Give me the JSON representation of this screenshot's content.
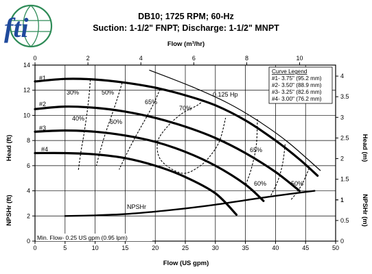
{
  "header": {
    "title": "DB10; 1725 RPM; 60-Hz",
    "subtitle": "Suction: 1-1/2\" FNPT; Discharge: 1-1/2\" MNPT",
    "brand_text": "fti",
    "brand_color": "#1f4a9c",
    "globe_color": "#2e8b57"
  },
  "chart_data": {
    "type": "line",
    "xlabel": "Flow (US gpm)",
    "x2label": "Flow (m³/hr)",
    "ylabel_head": "Head (ft)",
    "ylabel_npshr": "NPSHr (ft)",
    "y2label_head": "Head (m)",
    "y2label_npshr": "NPSHr (m)",
    "xlim": [
      0,
      50
    ],
    "ylim": [
      0,
      14
    ],
    "x2lim": [
      0,
      11.36
    ],
    "x_ticks": [
      0,
      5,
      10,
      15,
      20,
      25,
      30,
      35,
      40,
      45,
      50
    ],
    "y_ticks": [
      0,
      2,
      4,
      6,
      8,
      10,
      12,
      14
    ],
    "x2_ticks": [
      0,
      2,
      4,
      6,
      8,
      10
    ],
    "y2_head_ticks": [
      1,
      1.5,
      2,
      2.5,
      3,
      3.5,
      4
    ],
    "y2_npshr_ticks": [
      0,
      0.5,
      1
    ],
    "grid": true,
    "legend_title": "Curve Legend",
    "legend_entries": [
      "#1- 3.75\" (95.2 mm)",
      "#2- 3.50\" (88.9 mm)",
      "#3- 3.25\" (82.6 mm)",
      "#4- 3.00\" (76.2 mm)"
    ],
    "series": [
      {
        "name": "#1",
        "x": [
          0,
          5,
          10,
          15,
          20,
          25,
          30,
          35,
          40,
          44,
          47
        ],
        "y": [
          12.7,
          12.9,
          12.85,
          12.6,
          12.2,
          11.6,
          10.8,
          9.6,
          8.0,
          6.5,
          5.2
        ]
      },
      {
        "name": "#2",
        "x": [
          0,
          5,
          10,
          15,
          20,
          25,
          30,
          35,
          40,
          44
        ],
        "y": [
          10.5,
          10.7,
          10.6,
          10.3,
          9.8,
          9.1,
          8.2,
          7.0,
          5.5,
          4.0
        ]
      },
      {
        "name": "#3",
        "x": [
          0,
          5,
          10,
          15,
          20,
          25,
          30,
          35,
          38
        ],
        "y": [
          8.7,
          8.8,
          8.7,
          8.4,
          7.9,
          7.1,
          6.0,
          4.5,
          3.2
        ]
      },
      {
        "name": "#4",
        "x": [
          0,
          5,
          10,
          15,
          20,
          25,
          30,
          33.5
        ],
        "y": [
          7.0,
          7.0,
          6.9,
          6.6,
          6.0,
          5.1,
          3.8,
          2.1
        ]
      }
    ],
    "npshr": {
      "name": "NPSHr",
      "x": [
        5,
        10,
        15,
        20,
        25,
        30,
        35,
        40,
        46.5
      ],
      "y": [
        2.0,
        2.05,
        2.15,
        2.35,
        2.6,
        2.9,
        3.25,
        3.6,
        4.0
      ]
    },
    "power_line": {
      "name": "0.125 Hp",
      "x": [
        19,
        26,
        32,
        37,
        42,
        47.5
      ],
      "y": [
        13.6,
        12.3,
        11.0,
        9.6,
        7.9,
        5.6
      ]
    },
    "efficiency_labels": [
      "30%",
      "50%",
      "40%",
      "60%",
      "65%",
      "70%",
      "65%",
      "60%",
      "50%"
    ],
    "efficiency_contours": [
      {
        "x": [
          9.2,
          9.0,
          8.6,
          8.1,
          7.6,
          7.2
        ],
        "y": [
          12.85,
          11.6,
          10.0,
          8.4,
          7.0,
          5.6
        ]
      },
      {
        "x": [
          14.5,
          13.6,
          12.6,
          11.6,
          10.8,
          10.2
        ],
        "y": [
          12.6,
          11.2,
          9.8,
          8.4,
          7.1,
          6.0
        ]
      },
      {
        "x": [
          20.8,
          19.6,
          18.0,
          16.6,
          15.2,
          14.0
        ],
        "y": [
          12.1,
          10.8,
          9.4,
          8.2,
          6.9,
          5.7
        ]
      },
      {
        "x": [
          28.0,
          27.0,
          24.6,
          22.2,
          20.4,
          21.0,
          24.5,
          27.5,
          29.5,
          30.8,
          31.7
        ],
        "y": [
          11.2,
          10.8,
          10.2,
          9.2,
          7.9,
          6.4,
          5.4,
          6.0,
          7.0,
          8.1,
          9.8
        ]
      },
      {
        "x": [
          37.0,
          36.8,
          36.0,
          35.0
        ],
        "y": [
          9.7,
          7.6,
          5.8,
          4.4
        ]
      },
      {
        "x": [
          41.6,
          41.2,
          40.4,
          39.2
        ],
        "y": [
          7.7,
          6.2,
          4.8,
          3.6
        ]
      },
      {
        "x": [
          45.6,
          44.6,
          43.6,
          42.6
        ],
        "y": [
          5.8,
          4.7,
          3.9,
          3.3
        ]
      }
    ],
    "min_flow_note": "Min. Flow- 0.25 US gpm (0.95 lpm)"
  }
}
